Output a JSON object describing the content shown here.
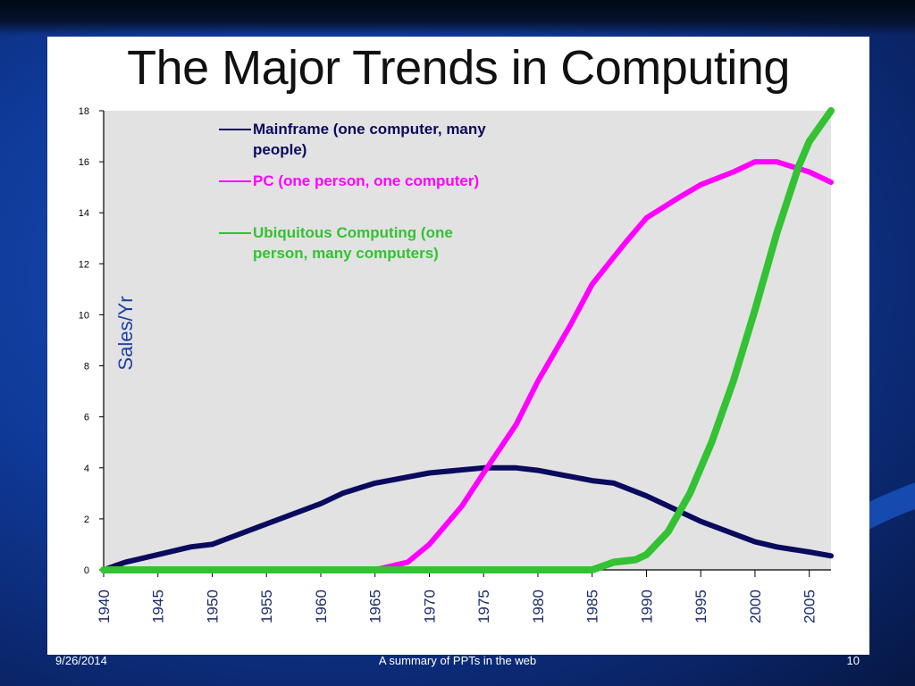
{
  "slide": {
    "title": "The Major Trends in Computing",
    "footer_date": "9/26/2014",
    "footer_center": "A summary of PPTs in the web",
    "page_number": "10"
  },
  "chart_data": {
    "type": "line",
    "title": "",
    "xlabel": "",
    "ylabel": "Sales/Yr",
    "xlim": [
      1940,
      2007
    ],
    "ylim": [
      0,
      18
    ],
    "x_ticks": [
      "1940",
      "1945",
      "1950",
      "1955",
      "1960",
      "1965",
      "1970",
      "1975",
      "1980",
      "1985",
      "1990",
      "1995",
      "2000",
      "2005"
    ],
    "y_ticks": [
      "0",
      "2",
      "4",
      "6",
      "8",
      "10",
      "12",
      "14",
      "16",
      "18"
    ],
    "grid": false,
    "legend_placement": "top-left",
    "series": [
      {
        "name": "Mainframe (one computer, many people)",
        "color": "#0a0a5e",
        "x": [
          1940,
          1942,
          1945,
          1948,
          1950,
          1955,
          1960,
          1962,
          1965,
          1970,
          1975,
          1978,
          1980,
          1985,
          1987,
          1990,
          1995,
          2000,
          2002,
          2005,
          2007
        ],
        "y": [
          0,
          0.3,
          0.6,
          0.9,
          1.0,
          1.8,
          2.6,
          3.0,
          3.4,
          3.8,
          4.0,
          4.0,
          3.9,
          3.5,
          3.4,
          2.9,
          1.9,
          1.1,
          0.9,
          0.7,
          0.55
        ]
      },
      {
        "name": "PC (one person, one computer)",
        "color": "#ff00ff",
        "x": [
          1940,
          1965,
          1968,
          1970,
          1973,
          1975,
          1978,
          1980,
          1983,
          1985,
          1988,
          1990,
          1993,
          1995,
          1998,
          2000,
          2002,
          2005,
          2007
        ],
        "y": [
          0,
          0,
          0.3,
          1.0,
          2.5,
          3.8,
          5.7,
          7.4,
          9.6,
          11.2,
          12.8,
          13.8,
          14.6,
          15.1,
          15.6,
          16.0,
          16.0,
          15.6,
          15.2
        ]
      },
      {
        "name": "Ubiquitous Computing (one person, many computers)",
        "color": "#33c233",
        "x": [
          1940,
          1985,
          1987,
          1989,
          1990,
          1992,
          1994,
          1996,
          1998,
          2000,
          2002,
          2004,
          2005,
          2007
        ],
        "y": [
          0,
          0,
          0.3,
          0.4,
          0.6,
          1.5,
          3.0,
          5.0,
          7.4,
          10.2,
          13.2,
          15.8,
          16.8,
          18.0
        ]
      }
    ]
  }
}
